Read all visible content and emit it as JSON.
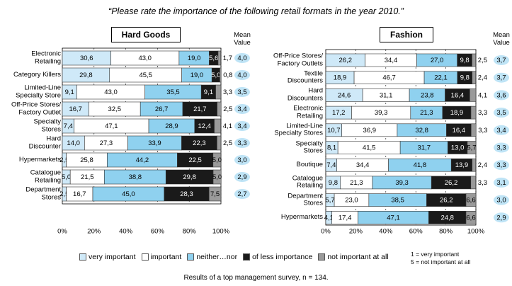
{
  "title": "“Please rate the importance of the following retail formats in the year 2010.”",
  "footnote": "Results of a top management survey, n = 134.",
  "scale_notes": [
    "1 = very important",
    "5 = not important at all"
  ],
  "chart_data": [
    {
      "type": "bar",
      "orientation": "horizontal",
      "stacked": true,
      "title": "Hard Goods",
      "mean_title": "Mean Value",
      "categories": [
        "Electronic\nRetailing",
        "Category Killers",
        "Limited-Line\nSpecialty Store",
        "Off-Price Stores/\nFactory Outlet",
        "Specialty\nStores",
        "Hard\nDiscounter",
        "Hypermarkets",
        "Catalogue\nRetailing",
        "Department\nStores"
      ],
      "series": [
        {
          "name": "very important",
          "color": "#cfe9f8",
          "values": [
            30.6,
            29.8,
            9.1,
            16.7,
            7.4,
            14.0,
            2.5,
            5.0,
            2.5
          ],
          "value_labels": [
            "30,6",
            "29,8",
            "9,1",
            "16,7",
            "7,4",
            "14,0",
            "2,5",
            "5,0",
            "2,5"
          ]
        },
        {
          "name": "important",
          "color": "#ffffff",
          "values": [
            43.0,
            45.5,
            43.0,
            32.5,
            47.1,
            27.3,
            25.8,
            21.5,
            16.7
          ],
          "value_labels": [
            "43,0",
            "45,5",
            "43,0",
            "32,5",
            "47,1",
            "27,3",
            "25,8",
            "21,5",
            "16,7"
          ]
        },
        {
          "name": "neither…nor",
          "color": "#8fd1ef",
          "values": [
            19.0,
            19.0,
            35.5,
            26.7,
            28.9,
            33.9,
            44.2,
            38.8,
            45.0
          ],
          "value_labels": [
            "19,0",
            "19,0",
            "35,5",
            "26,7",
            "28,9",
            "33,9",
            "44,2",
            "38,8",
            "45,0"
          ]
        },
        {
          "name": "of less importance",
          "color": "#1a1a1a",
          "values": [
            5.6,
            5.0,
            9.1,
            21.7,
            12.4,
            22.3,
            22.5,
            29.8,
            28.3
          ],
          "value_labels": [
            "5,6",
            "5,0",
            "9,1",
            "21,7",
            "12,4",
            "22,3",
            "22,5",
            "29,8",
            "28,3"
          ]
        },
        {
          "name": "not important at all",
          "color": "#9a9a9a",
          "values": [
            1.7,
            0.8,
            3.3,
            2.5,
            4.1,
            2.5,
            5.0,
            5.0,
            7.5
          ],
          "value_labels": [
            "1,7",
            "0,8",
            "3,3",
            "2,5",
            "4,1",
            "2,5",
            "5,0",
            "5,0",
            "7,5"
          ]
        }
      ],
      "means": [
        4.0,
        4.0,
        3.5,
        3.4,
        3.4,
        3.3,
        3.0,
        2.9,
        2.7
      ],
      "mean_labels": [
        "4,0",
        "4,0",
        "3,5",
        "3,4",
        "3,4",
        "3,3",
        "3,0",
        "2,9",
        "2,7"
      ],
      "xlim": [
        0,
        100
      ],
      "xticks": [
        {
          "value": 0,
          "label": "0%"
        },
        {
          "value": 20,
          "label": "20%"
        },
        {
          "value": 40,
          "label": "40%"
        },
        {
          "value": 60,
          "label": "60%"
        },
        {
          "value": 80,
          "label": "80%"
        },
        {
          "value": 100,
          "label": "100%"
        }
      ],
      "grid": true
    },
    {
      "type": "bar",
      "orientation": "horizontal",
      "stacked": true,
      "title": "Fashion",
      "mean_title": "Mean Value",
      "categories": [
        "Off-Price Stores/\nFactory Outlets",
        "Textile\nDiscounters",
        "Hard\nDiscounters",
        "Electronic\nRetailing",
        "Limited-Line\nSpecialty Stores",
        "Specialty\nStores",
        "Boutique",
        "Catalogue\nRetailing",
        "Department\nStores",
        "Hypermarkets"
      ],
      "series": [
        {
          "name": "very important",
          "color": "#cfe9f8",
          "values": [
            26.2,
            18.9,
            24.6,
            17.2,
            10.7,
            8.1,
            7.4,
            9.8,
            5.7,
            4.1
          ],
          "value_labels": [
            "26,2",
            "18,9",
            "24,6",
            "17,2",
            "10,7",
            "8,1",
            "7,4",
            "9,8",
            "5,7",
            "4,1"
          ]
        },
        {
          "name": "important",
          "color": "#ffffff",
          "values": [
            34.4,
            46.7,
            31.1,
            39.3,
            36.9,
            41.5,
            34.4,
            21.3,
            23.0,
            17.4
          ],
          "value_labels": [
            "34,4",
            "46,7",
            "31,1",
            "39,3",
            "36,9",
            "41,5",
            "34,4",
            "21,3",
            "23,0",
            "17,4"
          ]
        },
        {
          "name": "neither…nor",
          "color": "#8fd1ef",
          "values": [
            27.0,
            22.1,
            23.8,
            21.3,
            32.8,
            31.7,
            41.8,
            39.3,
            38.5,
            47.1
          ],
          "value_labels": [
            "27,0",
            "22,1",
            "23,8",
            "21,3",
            "32,8",
            "31,7",
            "41,8",
            "39,3",
            "38,5",
            "47,1"
          ]
        },
        {
          "name": "of less importance",
          "color": "#1a1a1a",
          "values": [
            9.8,
            9.8,
            16.4,
            18.9,
            16.4,
            13.0,
            13.9,
            26.2,
            26.2,
            24.8
          ],
          "value_labels": [
            "9,8",
            "9,8",
            "16,4",
            "18,9",
            "16,4",
            "13,0",
            "13,9",
            "26,2",
            "26,2",
            "24,8"
          ]
        },
        {
          "name": "not important at all",
          "color": "#9a9a9a",
          "values": [
            2.5,
            2.4,
            4.1,
            3.3,
            3.3,
            5.7,
            2.4,
            3.3,
            6.6,
            6.6
          ],
          "value_labels": [
            "2,5",
            "2,4",
            "4,1",
            "3,3",
            "3,3",
            "5,7",
            "2,4",
            "3,3",
            "6,6",
            "6,6"
          ]
        }
      ],
      "means": [
        3.7,
        3.7,
        3.6,
        3.5,
        3.4,
        3.3,
        3.3,
        3.1,
        3.0,
        2.9
      ],
      "mean_labels": [
        "3,7",
        "3,7",
        "3,6",
        "3,5",
        "3,4",
        "3,3",
        "3,3",
        "3,1",
        "3,0",
        "2,9"
      ],
      "xlim": [
        0,
        100
      ],
      "xticks": [
        {
          "value": 0,
          "label": "0%"
        },
        {
          "value": 20,
          "label": "20%"
        },
        {
          "value": 40,
          "label": "40%"
        },
        {
          "value": 60,
          "label": "60%"
        },
        {
          "value": 80,
          "label": "80%"
        },
        {
          "value": 100,
          "label": "100%"
        }
      ],
      "grid": true
    }
  ]
}
